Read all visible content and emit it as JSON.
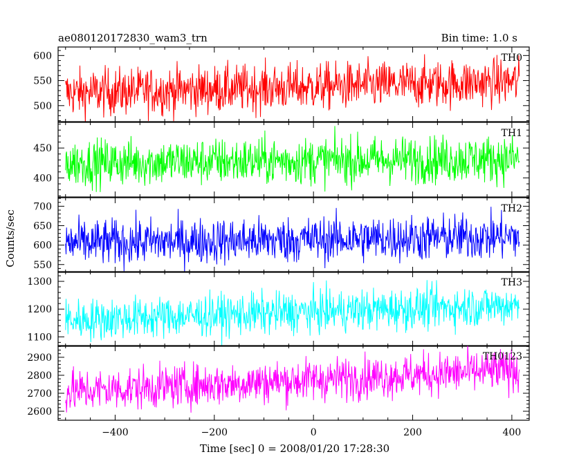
{
  "header": {
    "left_title": "ae080120172830_wam3_trn",
    "right_title": "Bin time: 1.0 s"
  },
  "chart_data": {
    "type": "line",
    "title": "ae080120172830_wam3_trn",
    "subtitle": "Bin time: 1.0 s",
    "xlabel": "Time [sec] 0 = 2008/01/20 17:28:30",
    "ylabel": "Counts/sec",
    "xlim": [
      -515,
      435
    ],
    "xticks": [
      -400,
      -200,
      0,
      200,
      400
    ],
    "xticklabels": [
      "−400",
      "−200",
      "0",
      "200",
      "400"
    ],
    "x_range": [
      -500,
      415
    ],
    "bin_time_s": 1.0,
    "grid": false,
    "series": [
      {
        "name": "TH0",
        "color": "#ff0000",
        "ylim": [
          468,
          617
        ],
        "yticks": [
          500,
          550,
          600
        ],
        "yticklabels": [
          "500",
          "550",
          "600"
        ],
        "trend_start": 525,
        "trend_end": 548,
        "noise": 24
      },
      {
        "name": "TH1",
        "color": "#00ff00",
        "ylim": [
          368,
          493
        ],
        "yticks": [
          400,
          450
        ],
        "yticklabels": [
          "400",
          "450"
        ],
        "trend_start": 425,
        "trend_end": 432,
        "noise": 20
      },
      {
        "name": "TH2",
        "color": "#0000ff",
        "ylim": [
          530,
          722
        ],
        "yticks": [
          550,
          600,
          650,
          700
        ],
        "yticklabels": [
          "550",
          "600",
          "650",
          "700"
        ],
        "trend_start": 605,
        "trend_end": 622,
        "noise": 30
      },
      {
        "name": "TH3",
        "color": "#00ffff",
        "ylim": [
          1066,
          1335
        ],
        "yticks": [
          1100,
          1200,
          1300
        ],
        "yticklabels": [
          "1100",
          "1200",
          "1300"
        ],
        "trend_start": 1160,
        "trend_end": 1215,
        "noise": 38
      },
      {
        "name": "TH0123",
        "color": "#ff00ff",
        "ylim": [
          2550,
          2965
        ],
        "yticks": [
          2600,
          2700,
          2800,
          2900
        ],
        "yticklabels": [
          "2600",
          "2700",
          "2800",
          "2900"
        ],
        "trend_start": 2710,
        "trend_end": 2830,
        "noise": 60
      }
    ]
  }
}
